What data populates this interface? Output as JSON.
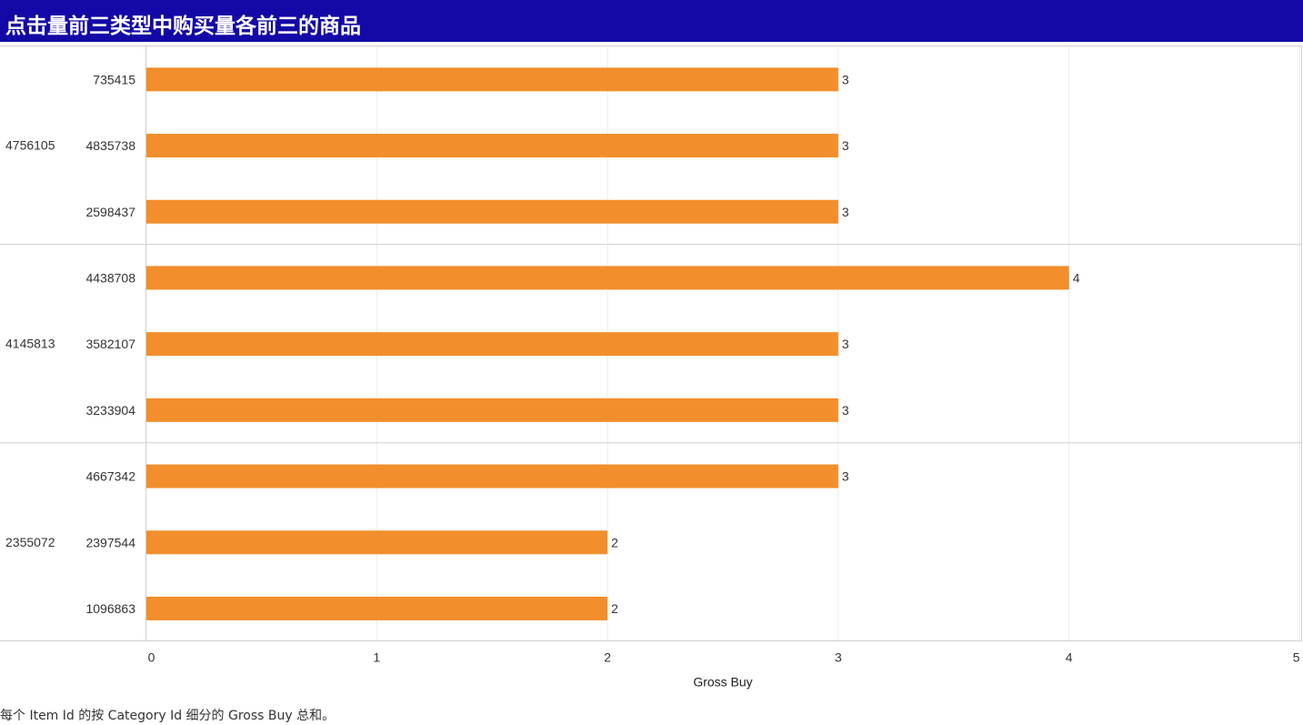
{
  "title": "点击量前三类型中购买量各前三的商品",
  "caption": "每个 Item Id 的按 Category Id 细分的 Gross Buy 总和。",
  "colors": {
    "title_background": "#1408a6",
    "bar": "#f28e2c",
    "text": "#333333",
    "grid": "#ececec",
    "divider": "#cfcfcf"
  },
  "chart_data": {
    "type": "bar",
    "orientation": "horizontal",
    "xlabel": "Gross Buy",
    "xlim": [
      0,
      5
    ],
    "xticks": [
      0,
      1,
      2,
      3,
      4,
      5
    ],
    "grid": true,
    "data_labels": true,
    "groups": [
      {
        "category": "4756105",
        "items": [
          {
            "item": "735415",
            "value": 3
          },
          {
            "item": "4835738",
            "value": 3
          },
          {
            "item": "2598437",
            "value": 3
          }
        ]
      },
      {
        "category": "4145813",
        "items": [
          {
            "item": "4438708",
            "value": 4
          },
          {
            "item": "3582107",
            "value": 3
          },
          {
            "item": "3233904",
            "value": 3
          }
        ]
      },
      {
        "category": "2355072",
        "items": [
          {
            "item": "4667342",
            "value": 3
          },
          {
            "item": "2397544",
            "value": 2
          },
          {
            "item": "1096863",
            "value": 2
          }
        ]
      }
    ]
  }
}
